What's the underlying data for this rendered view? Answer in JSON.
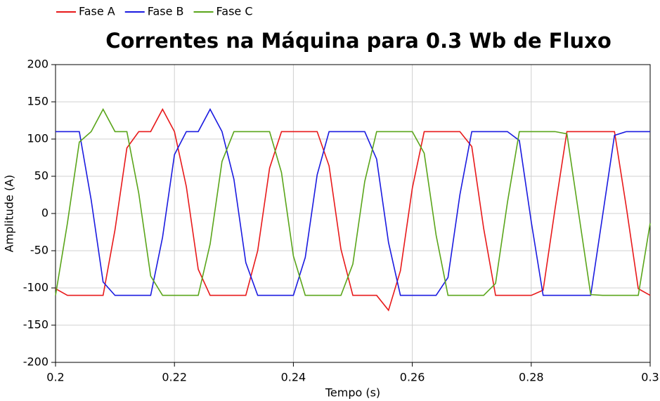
{
  "chart_data": {
    "type": "line",
    "title": "Correntes na Máquina para 0.3 Wb de Fluxo",
    "x_label": "Tempo (s)",
    "y_label": "Amplitude (A)",
    "x": [
      0.2,
      0.202,
      0.204,
      0.206,
      0.208,
      0.21,
      0.212,
      0.214,
      0.216,
      0.218,
      0.22,
      0.222,
      0.224,
      0.226,
      0.228,
      0.23,
      0.232,
      0.234,
      0.236,
      0.238,
      0.24,
      0.242,
      0.244,
      0.246,
      0.248,
      0.25,
      0.252,
      0.254,
      0.256,
      0.258,
      0.26,
      0.262,
      0.264,
      0.266,
      0.268,
      0.27,
      0.272,
      0.274,
      0.276,
      0.278,
      0.28,
      0.282,
      0.284,
      0.286,
      0.288,
      0.29,
      0.292,
      0.294,
      0.296,
      0.298,
      0.3
    ],
    "series": [
      {
        "name": "Fase A",
        "color": "#e8191a",
        "values": [
          -101,
          -110,
          -110,
          -110,
          -110,
          -22,
          88,
          110,
          110,
          140,
          110,
          36,
          -75,
          -110,
          -110,
          -110,
          -110,
          -50,
          61,
          110,
          110,
          110,
          110,
          64,
          -48,
          -110,
          -110,
          -110,
          -130,
          -77,
          34,
          110,
          110,
          110,
          110,
          90,
          -20,
          -110,
          -110,
          -110,
          -110,
          -103,
          6,
          110,
          110,
          110,
          110,
          110,
          8,
          -101,
          -110
        ]
      },
      {
        "name": "Fase B",
        "color": "#1a1ae0",
        "values": [
          110,
          110,
          110,
          18,
          -92,
          -110,
          -110,
          -110,
          -110,
          -32,
          79,
          110,
          110,
          140,
          110,
          46,
          -66,
          -110,
          -110,
          -110,
          -110,
          -59,
          52,
          110,
          110,
          110,
          110,
          73,
          -39,
          -110,
          -110,
          -110,
          -110,
          -86,
          25,
          110,
          110,
          110,
          110,
          98,
          -11,
          -110,
          -110,
          -110,
          -110,
          -110,
          -3,
          105,
          110,
          110,
          110
        ]
      },
      {
        "name": "Fase C",
        "color": "#5aa51a",
        "values": [
          -110,
          -13,
          96,
          110,
          140,
          110,
          110,
          27,
          -84,
          -110,
          -110,
          -110,
          -110,
          -41,
          70,
          110,
          110,
          110,
          110,
          55,
          -57,
          -110,
          -110,
          -110,
          -110,
          -68,
          43,
          110,
          110,
          110,
          110,
          81,
          -29,
          -110,
          -110,
          -110,
          -110,
          -94,
          15,
          110,
          110,
          110,
          110,
          107,
          -1,
          -109,
          -110,
          -110,
          -110,
          -110,
          -13
        ]
      }
    ],
    "xlim": [
      0.2,
      0.3
    ],
    "xticks": [
      0.2,
      0.22,
      0.24,
      0.26,
      0.28,
      0.3
    ],
    "ylim": [
      -200,
      200
    ],
    "yticks": [
      -200,
      -150,
      -100,
      -50,
      0,
      50,
      100,
      150,
      200
    ],
    "grid": true,
    "legend": "top-left"
  }
}
